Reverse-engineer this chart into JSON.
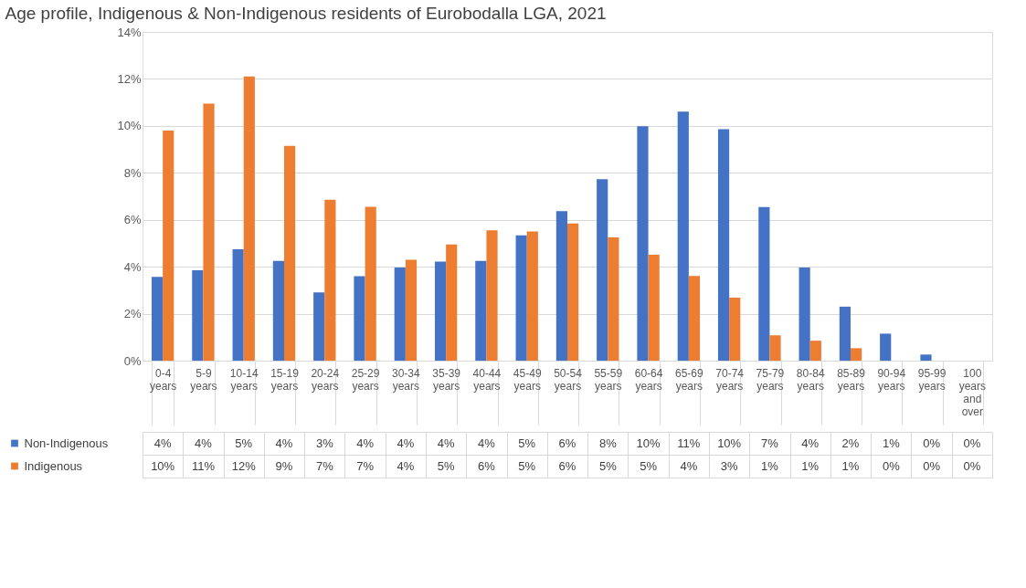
{
  "chart_data": {
    "type": "bar",
    "title": "Age profile, Indigenous & Non-Indigenous residents of Eurobodalla LGA, 2021",
    "categories": [
      "0-4 years",
      "5-9 years",
      "10-14 years",
      "15-19 years",
      "20-24 years",
      "25-29 years",
      "30-34 years",
      "35-39 years",
      "40-44 years",
      "45-49 years",
      "50-54 years",
      "55-59 years",
      "60-64 years",
      "65-69 years",
      "70-74 years",
      "75-79 years",
      "80-84 years",
      "85-89 years",
      "90-94 years",
      "95-99 years",
      "100 years and over"
    ],
    "series": [
      {
        "name": "Non-Indigenous",
        "color": "#4472c4",
        "values": [
          3.57,
          3.85,
          4.74,
          4.25,
          2.91,
          3.6,
          3.97,
          4.22,
          4.25,
          5.34,
          6.37,
          7.73,
          9.98,
          10.61,
          9.86,
          6.54,
          3.97,
          2.3,
          1.15,
          0.26,
          0
        ],
        "value_labels": [
          "4%",
          "4%",
          "5%",
          "4%",
          "3%",
          "4%",
          "4%",
          "4%",
          "4%",
          "5%",
          "6%",
          "8%",
          "10%",
          "11%",
          "10%",
          "7%",
          "4%",
          "2%",
          "1%",
          "0%",
          "0%"
        ]
      },
      {
        "name": "Indigenous",
        "color": "#ed7d31",
        "values": [
          9.8,
          10.95,
          12.1,
          9.15,
          6.85,
          6.55,
          4.3,
          4.95,
          5.55,
          5.5,
          5.84,
          5.25,
          4.51,
          3.61,
          2.68,
          1.08,
          0.85,
          0.53,
          0,
          0,
          0
        ],
        "value_labels": [
          "10%",
          "11%",
          "12%",
          "9%",
          "7%",
          "7%",
          "4%",
          "5%",
          "6%",
          "5%",
          "6%",
          "5%",
          "5%",
          "4%",
          "3%",
          "1%",
          "1%",
          "1%",
          "0%",
          "0%",
          "0%"
        ]
      }
    ],
    "ylim": [
      0,
      14
    ],
    "yticks": [
      {
        "value": 0,
        "label": "0%"
      },
      {
        "value": 2,
        "label": "2%"
      },
      {
        "value": 4,
        "label": "4%"
      },
      {
        "value": 6,
        "label": "6%"
      },
      {
        "value": 8,
        "label": "8%"
      },
      {
        "value": 10,
        "label": "10%"
      },
      {
        "value": 12,
        "label": "12%"
      },
      {
        "value": 14,
        "label": "14%"
      }
    ],
    "grid": "y",
    "legend": "bottom"
  }
}
